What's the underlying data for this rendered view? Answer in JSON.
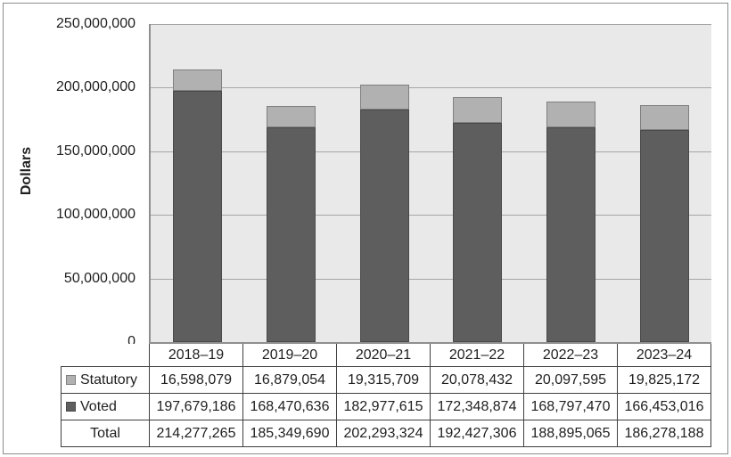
{
  "chart_data": {
    "type": "bar",
    "stacked": true,
    "title": "",
    "xlabel": "",
    "ylabel": "Dollars",
    "ylim": [
      0,
      250000000
    ],
    "yticks": [
      0,
      50000000,
      100000000,
      150000000,
      200000000,
      250000000
    ],
    "grid": true,
    "legend_position": "data-table",
    "plot_bg": "#e9e9e9",
    "gridline_color": "#a6a6a6",
    "axis_color": "#8f8f8f",
    "categories": [
      "2018–19",
      "2019–20",
      "2020–21",
      "2021–22",
      "2022–23",
      "2023–24"
    ],
    "stack_order_bottom_to_top": [
      "Voted",
      "Statutory"
    ],
    "series": [
      {
        "name": "Statutory",
        "color": "#b1b1b1",
        "border_color": "#7f7f7f",
        "values": [
          16598079,
          16879054,
          19315709,
          20078432,
          20097595,
          19825172
        ]
      },
      {
        "name": "Voted",
        "color": "#5e5e5e",
        "border_color": "#4a4a4a",
        "values": [
          197679186,
          168470636,
          182977615,
          172348874,
          168797470,
          166453016
        ]
      }
    ],
    "table": {
      "rows": [
        {
          "label": "Statutory",
          "swatch_color": "#b1b1b1",
          "swatch_border": "#7f7f7f",
          "values": [
            "16,598,079",
            "16,879,054",
            "19,315,709",
            "20,078,432",
            "20,097,595",
            "19,825,172"
          ]
        },
        {
          "label": "Voted",
          "swatch_color": "#5e5e5e",
          "swatch_border": "#4a4a4a",
          "values": [
            "197,679,186",
            "168,470,636",
            "182,977,615",
            "172,348,874",
            "168,797,470",
            "166,453,016"
          ]
        },
        {
          "label": "Total",
          "swatch_color": null,
          "swatch_border": null,
          "values": [
            "214,277,265",
            "185,349,690",
            "202,293,324",
            "192,427,306",
            "188,895,065",
            "186,278,188"
          ]
        }
      ]
    }
  }
}
